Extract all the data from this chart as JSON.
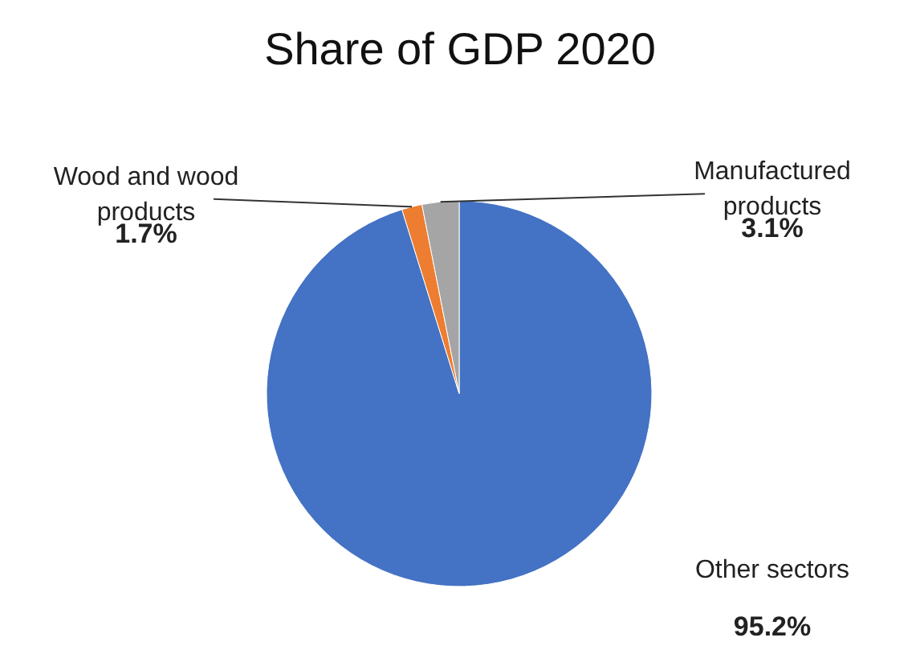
{
  "chart_data": {
    "type": "pie",
    "title": "Share of GDP 2020",
    "categories": [
      "Other sectors",
      "Wood and wood products",
      "Manufactured products"
    ],
    "values": [
      95.2,
      1.7,
      3.1
    ],
    "colors": [
      "#4472c4",
      "#ed7d31",
      "#a5a5a5"
    ],
    "value_labels": [
      "95.2%",
      "1.7%",
      "3.1%"
    ]
  }
}
